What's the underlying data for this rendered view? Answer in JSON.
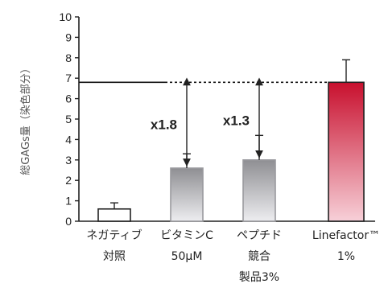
{
  "chart_data": {
    "type": "bar",
    "ylabel": "総GAGs量（染色部分）",
    "ylim": [
      0,
      10
    ],
    "yticks": [
      "0",
      "1",
      "2",
      "3",
      "4",
      "5",
      "6",
      "7",
      "8",
      "9",
      "10"
    ],
    "categories": [
      [
        "ネガティブ",
        "対照"
      ],
      [
        "ビタミンC",
        "50μM"
      ],
      [
        "ペプチド",
        "競合",
        "製品3%"
      ],
      [
        "Linefactor™",
        "1%"
      ]
    ],
    "values": [
      0.6,
      2.6,
      3.0,
      6.8
    ],
    "errors": [
      0.3,
      0.7,
      1.2,
      1.1
    ],
    "reference_line": 6.8,
    "annotations": [
      {
        "text": "x1.8",
        "bar_index": 1
      },
      {
        "text": "x1.3",
        "bar_index": 2
      }
    ],
    "colors": {
      "negative": "#ffffff",
      "gray_top": "#8f8f93",
      "gray_bottom": "#ededf0",
      "red_top": "#c8102e",
      "red_bottom": "#f7d0d8",
      "axis": "#222222"
    }
  }
}
